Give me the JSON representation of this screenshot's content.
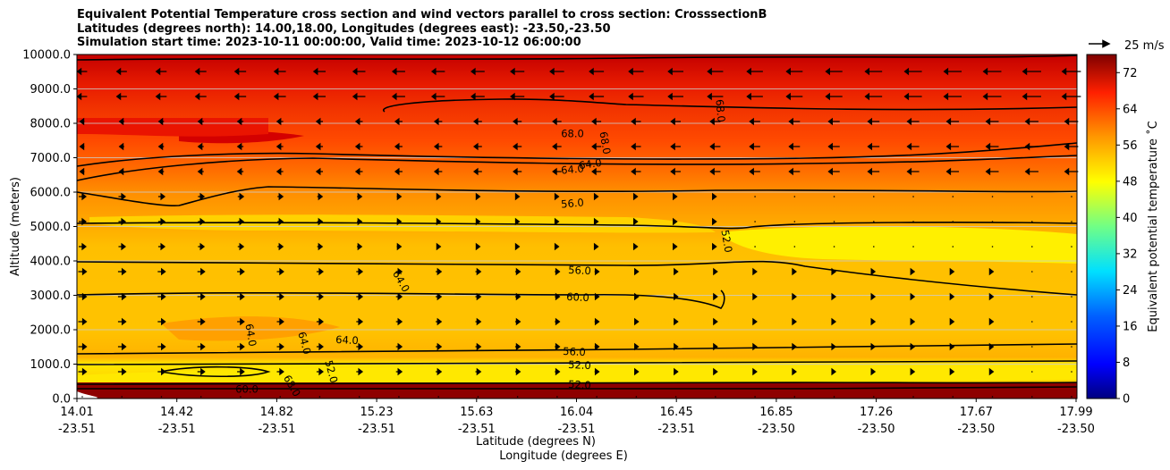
{
  "chart_data": {
    "type": "heatmap",
    "title_lines": [
      "Equivalent Potential Temperature cross section and wind vectors parallel to cross section: CrosssectionB",
      "Latitudes (degrees north): 14.00,18.00, Longitudes (degrees east): -23.50,-23.50",
      "Simulation start time: 2023-10-11 00:00:00, Valid time: 2023-10-12 06:00:00"
    ],
    "ylabel": "Altitude (meters)",
    "xlabel_lat": "Latitude (degrees N)",
    "xlabel_lon": "Longitude (degrees E)",
    "ylim": [
      0,
      10000
    ],
    "y_ticks": [
      "0.0",
      "1000.0",
      "2000.0",
      "3000.0",
      "4000.0",
      "5000.0",
      "6000.0",
      "7000.0",
      "8000.0",
      "9000.0",
      "10000.0"
    ],
    "x_ticks": [
      {
        "lat": "14.01",
        "lon": "-23.51"
      },
      {
        "lat": "14.42",
        "lon": "-23.51"
      },
      {
        "lat": "14.82",
        "lon": "-23.51"
      },
      {
        "lat": "15.23",
        "lon": "-23.51"
      },
      {
        "lat": "15.63",
        "lon": "-23.51"
      },
      {
        "lat": "16.04",
        "lon": "-23.51"
      },
      {
        "lat": "16.45",
        "lon": "-23.51"
      },
      {
        "lat": "16.85",
        "lon": "-23.50"
      },
      {
        "lat": "17.26",
        "lon": "-23.50"
      },
      {
        "lat": "17.67",
        "lon": "-23.50"
      },
      {
        "lat": "17.99",
        "lon": "-23.50"
      }
    ],
    "colorbar": {
      "label": "Equivalent potential temperature $^\\circ$C",
      "label_display": "Equivalent potential temperature ˚C",
      "range": [
        0,
        76
      ],
      "ticks": [
        "0",
        "8",
        "16",
        "24",
        "32",
        "40",
        "48",
        "56",
        "64",
        "72"
      ]
    },
    "quiver_key": "25 m/s",
    "contour_labels": [
      "68.0",
      "68.0",
      "68.0",
      "64.0",
      "64.0",
      "56.0",
      "52.0",
      "56.0",
      "64.0",
      "60.0",
      "64.0",
      "64.0",
      "64.0",
      "56.0",
      "52.0",
      "52.0",
      "52.0",
      "60.0",
      "68.0"
    ],
    "field_bands": [
      {
        "value_c": 72,
        "from_alt": 9000,
        "to_alt": 10000
      },
      {
        "value_c": 68,
        "from_alt": 7300,
        "to_alt": 9000
      },
      {
        "value_c": 64,
        "from_alt": 6300,
        "to_alt": 7300
      },
      {
        "value_c": 60,
        "from_alt": 5700,
        "to_alt": 6300
      },
      {
        "value_c": 56,
        "from_alt": 5000,
        "to_alt": 5700
      },
      {
        "value_c": 52,
        "from_alt": 1300,
        "to_alt": 5000
      },
      {
        "value_c": 50,
        "from_alt": 500,
        "to_alt": 1300
      },
      {
        "value_c": 72,
        "from_alt": 0,
        "to_alt": 500
      }
    ]
  }
}
